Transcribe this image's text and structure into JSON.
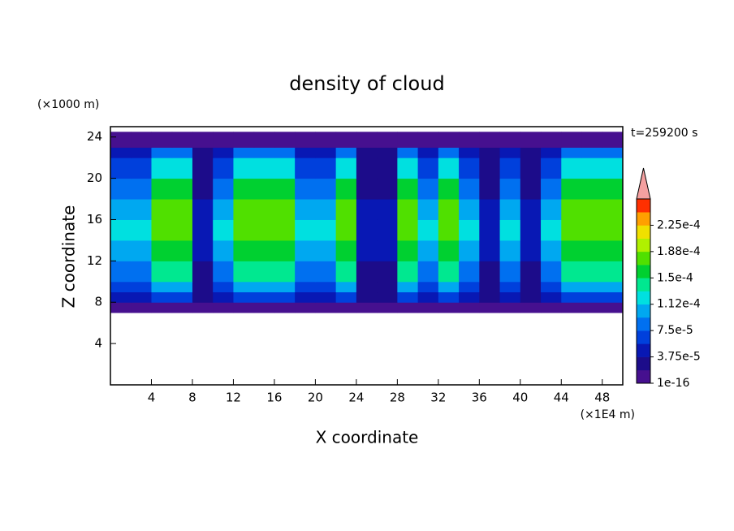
{
  "chart_data": {
    "type": "contour",
    "title": "density of cloud",
    "x_label": "X coordinate",
    "x_unit": "(×1E4 m)",
    "y_label": "Z coordinate",
    "y_unit": "(×1000 m)",
    "time_label": "t=259200 s",
    "xlim": [
      0,
      50
    ],
    "ylim": [
      0,
      25
    ],
    "xticks": [
      4,
      8,
      12,
      16,
      20,
      24,
      28,
      32,
      36,
      40,
      44,
      48
    ],
    "yticks": [
      4,
      8,
      12,
      16,
      20,
      24
    ],
    "field": {
      "x_edges": [
        0,
        2,
        4,
        6,
        8,
        10,
        12,
        14,
        16,
        18,
        20,
        22,
        24,
        26,
        28,
        30,
        32,
        34,
        36,
        38,
        40,
        42,
        44,
        46,
        48,
        50
      ],
      "z_edges": [
        7,
        8,
        9,
        10,
        12,
        14,
        16,
        18,
        20,
        22,
        23,
        24.5
      ],
      "values": [
        [
          1e-05,
          1e-05,
          1e-05,
          1e-05,
          1e-05,
          1e-05,
          1e-05,
          1e-05,
          1e-05,
          1e-05,
          1e-05,
          1e-05,
          1e-05,
          1e-05,
          1e-05,
          1e-05,
          1e-05,
          1e-05,
          1e-05,
          1e-05,
          1e-05,
          1e-05,
          1e-05,
          1e-05,
          1e-05
        ],
        [
          4e-05,
          4e-05,
          6e-05,
          6e-05,
          3e-05,
          4e-05,
          6e-05,
          6e-05,
          6e-05,
          4e-05,
          4e-05,
          6e-05,
          3e-05,
          3e-05,
          6e-05,
          4e-05,
          6e-05,
          4e-05,
          3e-05,
          4e-05,
          3e-05,
          4e-05,
          6e-05,
          6e-05,
          6e-05
        ],
        [
          6e-05,
          6e-05,
          0.0001,
          0.0001,
          2e-05,
          6e-05,
          0.0001,
          0.0001,
          0.0001,
          6e-05,
          6e-05,
          0.0001,
          2e-05,
          2e-05,
          0.0001,
          6e-05,
          0.0001,
          6e-05,
          2e-05,
          6e-05,
          2e-05,
          6e-05,
          0.0001,
          0.0001,
          0.0001
        ],
        [
          9e-05,
          9e-05,
          0.00014,
          0.00014,
          3e-05,
          9e-05,
          0.00014,
          0.00014,
          0.00014,
          9e-05,
          9e-05,
          0.00014,
          3e-05,
          3e-05,
          0.00014,
          9e-05,
          0.00014,
          9e-05,
          3e-05,
          9e-05,
          3e-05,
          9e-05,
          0.00014,
          0.00014,
          0.00014
        ],
        [
          0.00011,
          0.00011,
          0.00016,
          0.00016,
          4e-05,
          0.00011,
          0.00016,
          0.00016,
          0.00016,
          0.00011,
          0.00011,
          0.00016,
          4e-05,
          4e-05,
          0.00016,
          0.00011,
          0.00016,
          0.00011,
          4e-05,
          0.00011,
          4e-05,
          0.00011,
          0.00016,
          0.00016,
          0.00016
        ],
        [
          0.00012,
          0.00012,
          0.000175,
          0.000175,
          5e-05,
          0.00012,
          0.000175,
          0.000175,
          0.000175,
          0.00012,
          0.00012,
          0.000175,
          5e-05,
          5e-05,
          0.000175,
          0.00012,
          0.000175,
          0.00012,
          5e-05,
          0.00012,
          5e-05,
          0.00012,
          0.000175,
          0.000175,
          0.000175
        ],
        [
          0.00011,
          0.00011,
          0.00017,
          0.00017,
          4e-05,
          0.00011,
          0.00017,
          0.00017,
          0.00017,
          0.00011,
          0.00011,
          0.00017,
          4e-05,
          4e-05,
          0.00017,
          0.00011,
          0.00017,
          0.00011,
          4e-05,
          0.00011,
          4e-05,
          0.00011,
          0.00017,
          0.00017,
          0.00017
        ],
        [
          9e-05,
          9e-05,
          0.00015,
          0.00015,
          3e-05,
          9e-05,
          0.00015,
          0.00015,
          0.00015,
          9e-05,
          9e-05,
          0.00015,
          3e-05,
          3e-05,
          0.00015,
          9e-05,
          0.00015,
          9e-05,
          3e-05,
          9e-05,
          3e-05,
          9e-05,
          0.00015,
          0.00015,
          0.00015
        ],
        [
          7e-05,
          7e-05,
          0.00012,
          0.00012,
          3e-05,
          7e-05,
          0.00012,
          0.00012,
          0.00012,
          7e-05,
          7e-05,
          0.00012,
          3e-05,
          3e-05,
          0.00012,
          7e-05,
          0.00012,
          7e-05,
          3e-05,
          7e-05,
          3e-05,
          7e-05,
          0.00012,
          0.00012,
          0.00012
        ],
        [
          4e-05,
          4e-05,
          8e-05,
          8e-05,
          2e-05,
          4e-05,
          8e-05,
          8e-05,
          8e-05,
          4e-05,
          4e-05,
          8e-05,
          2e-05,
          2e-05,
          8e-05,
          4e-05,
          8e-05,
          4e-05,
          2e-05,
          4e-05,
          2e-05,
          4e-05,
          8e-05,
          8e-05,
          8e-05
        ],
        [
          1e-05,
          1e-05,
          1e-05,
          1e-05,
          1e-05,
          1e-05,
          1e-05,
          1e-05,
          1e-05,
          1e-05,
          1e-05,
          1e-05,
          1e-05,
          1e-05,
          1e-05,
          1e-05,
          1e-05,
          1e-05,
          1e-05,
          1e-05,
          1e-05,
          1e-05,
          1e-05,
          1e-05,
          1e-05
        ]
      ]
    },
    "colorbar": {
      "levels": [
        1e-16,
        1.875e-05,
        3.75e-05,
        5.625e-05,
        7.5e-05,
        9.375e-05,
        0.0001125,
        0.00013125,
        0.00015,
        0.00016875,
        0.0001875,
        0.00020625,
        0.000225,
        0.00024375,
        0.0002625
      ],
      "colors": [
        "#46108f",
        "#1c0c8a",
        "#0818b4",
        "#0040dc",
        "#0070f0",
        "#00a8f0",
        "#00e0e0",
        "#00e890",
        "#00d030",
        "#50e000",
        "#b0f000",
        "#f0e000",
        "#ffa000",
        "#ff3000"
      ],
      "over_color": "#f4a0a0",
      "ticks": [
        {
          "value": 1e-16,
          "label": "1e-16"
        },
        {
          "value": 3.75e-05,
          "label": "3.75e-5"
        },
        {
          "value": 7.5e-05,
          "label": "7.5e-5"
        },
        {
          "value": 0.0001125,
          "label": "1.12e-4"
        },
        {
          "value": 0.00015,
          "label": "1.5e-4"
        },
        {
          "value": 0.0001875,
          "label": "1.88e-4"
        },
        {
          "value": 0.000225,
          "label": "2.25e-4"
        }
      ]
    }
  }
}
